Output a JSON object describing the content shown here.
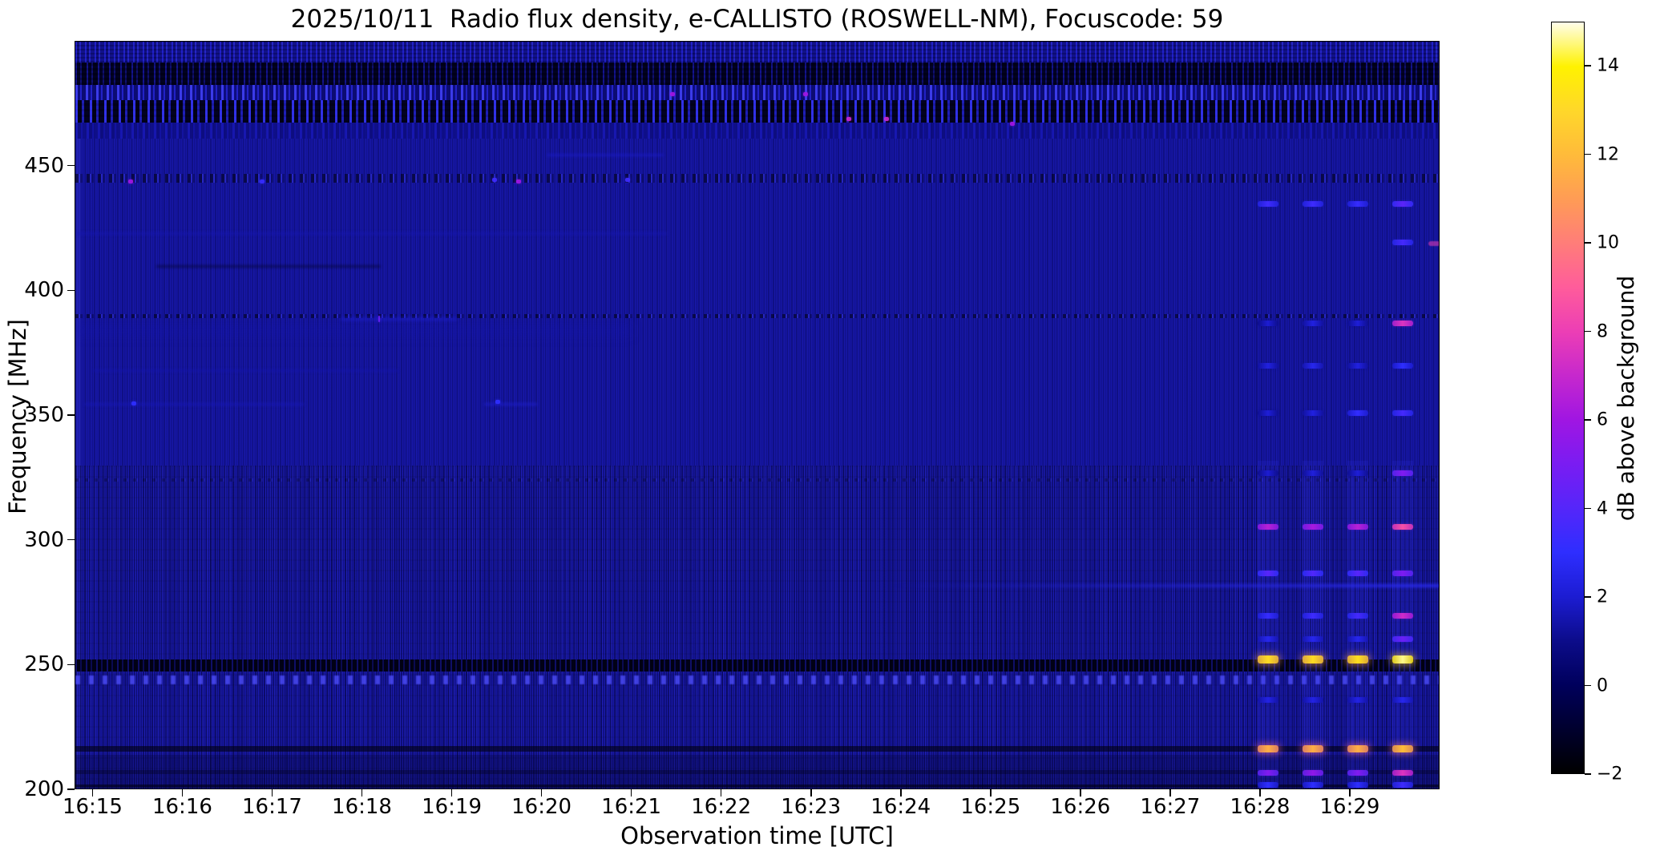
{
  "title": "2025/10/11  Radio flux density, e-CALLISTO (ROSWELL-NM), Focuscode: 59",
  "chart_data": {
    "type": "heatmap",
    "title": "2025/10/11  Radio flux density, e-CALLISTO (ROSWELL-NM), Focuscode: 59",
    "date": "2025/10/11",
    "station": "ROSWELL-NM",
    "instrument": "e-CALLISTO",
    "focuscode": "59",
    "xlabel": "Observation time [UTC]",
    "ylabel": "Frequency [MHz]",
    "colorbar_label": "dB above background",
    "x_ticks": [
      "16:15",
      "16:16",
      "16:17",
      "16:18",
      "16:19",
      "16:20",
      "16:21",
      "16:22",
      "16:23",
      "16:24",
      "16:25",
      "16:26",
      "16:27",
      "16:28",
      "16:29"
    ],
    "y_ticks": [
      450,
      400,
      350,
      300,
      250,
      200
    ],
    "x_range_utc": [
      "16:14:48",
      "16:30:00"
    ],
    "y_range_mhz": [
      200,
      500
    ],
    "grid": false,
    "legend": "colorbar-right",
    "color_scale": {
      "min": -2,
      "max": 15,
      "ticks": [
        14,
        12,
        10,
        8,
        6,
        4,
        2,
        0,
        -2
      ],
      "colormap": "gnuplot2-like (black-blue-violet-magenta-orange-yellow-white)",
      "stops": [
        [
          -2,
          "#000000"
        ],
        [
          0,
          "#00005c"
        ],
        [
          1,
          "#0c0c8a"
        ],
        [
          2,
          "#1c1cd2"
        ],
        [
          3,
          "#2e2eff"
        ],
        [
          4,
          "#5526fa"
        ],
        [
          5,
          "#7a1cf2"
        ],
        [
          6,
          "#a016e2"
        ],
        [
          7,
          "#c628cd"
        ],
        [
          8,
          "#ec3eb5"
        ],
        [
          9,
          "#ff5c9b"
        ],
        [
          10,
          "#ff7d79"
        ],
        [
          11,
          "#ff9c55"
        ],
        [
          12,
          "#ffbb3a"
        ],
        [
          13,
          "#ffd72a"
        ],
        [
          14,
          "#fff200"
        ],
        [
          15,
          "#fffdea"
        ]
      ]
    },
    "background_level_db": 0.9,
    "features": {
      "description": "Quiet blue background with fine vertical instrumental striping; noisy RFI band at 460-500 MHz; weak horizontal interference lines; four strong periodic broadband RFI bursts at ~30 s cadence near 16:28-16:30 with brightest emission at 252 MHz and 216 MHz.",
      "bands": [
        {
          "f1": 500,
          "f2": 491.5,
          "type": "noise-blue"
        },
        {
          "f1": 491.5,
          "f2": 482.5,
          "type": "speckle-dark"
        },
        {
          "f1": 482.5,
          "f2": 476.5,
          "type": "speckle-bright"
        },
        {
          "f1": 476.5,
          "f2": 467.5,
          "type": "noise-heavy"
        },
        {
          "f1": 467.5,
          "f2": 461,
          "type": "noise-fade"
        },
        {
          "f1": 447,
          "f2": 443.5,
          "type": "speckle-row"
        },
        {
          "f1": 390.8,
          "f2": 389.2,
          "type": "speckle-row"
        },
        {
          "f1": 325,
          "f2": 323.5,
          "type": "speckle-row-light"
        },
        {
          "f1": 330,
          "f2": 200,
          "type": "stripes-strong"
        },
        {
          "f1": 252.5,
          "f2": 247.5,
          "type": "dark-band"
        },
        {
          "f1": 246,
          "f2": 242.5,
          "type": "blob-row"
        },
        {
          "f1": 217.6,
          "f2": 215.4,
          "type": "dark-line"
        },
        {
          "f1": 214,
          "f2": 201,
          "type": "dim"
        },
        {
          "f1": 208,
          "f2": 206.5,
          "type": "dark-line-light"
        },
        {
          "f1": 202.3,
          "f2": 200.8,
          "type": "dark-line"
        }
      ],
      "streaks": [
        {
          "f": 454.5,
          "t1": "16:20:03",
          "t2": "16:21:21",
          "db": 2.0,
          "h": 3,
          "blur": 1.5
        },
        {
          "f": 423.0,
          "t1": "16:14:48",
          "t2": "16:21:24",
          "db": 1.6,
          "h": 3,
          "blur": 1.5
        },
        {
          "f": 410.0,
          "t1": "16:15:42",
          "t2": "16:18:12",
          "db": -0.6,
          "h": 3,
          "blur": 1.5,
          "dark": true
        },
        {
          "f": 389.0,
          "t1": "16:17:45",
          "t2": "16:19:03",
          "db": 2.2,
          "h": 4,
          "blur": 2
        },
        {
          "f": 384.0,
          "t1": "16:14:48",
          "t2": "16:21:00",
          "db": 1.5,
          "h": 14,
          "blur": 6
        },
        {
          "f": 368.0,
          "t1": "16:15:00",
          "t2": "16:18:24",
          "db": 1.5,
          "h": 3,
          "blur": 1.5
        },
        {
          "f": 354.5,
          "t1": "16:14:54",
          "t2": "16:17:21",
          "db": 1.7,
          "h": 3,
          "blur": 1.5
        },
        {
          "f": 354.5,
          "t1": "16:19:21",
          "t2": "16:19:57",
          "db": 2.2,
          "h": 3,
          "blur": 1.5
        },
        {
          "f": 282.0,
          "t1": "16:23:54",
          "t2": "16:30:00",
          "db": 3.0,
          "h": 4,
          "blur": 1.5,
          "grad": true
        },
        {
          "f": 419.0,
          "t1": "16:29:52",
          "t2": "16:30:00",
          "db": 8.0,
          "h": 6,
          "blur": 0.5
        }
      ],
      "dots": [
        {
          "t": "16:15:25",
          "f": 444.0,
          "db": 6.0
        },
        {
          "t": "16:16:53",
          "f": 444.0,
          "db": 3.2
        },
        {
          "t": "16:19:28",
          "f": 444.5,
          "db": 3.4
        },
        {
          "t": "16:19:44",
          "f": 444.0,
          "db": 6.0
        },
        {
          "t": "16:20:57",
          "f": 444.5,
          "db": 3.4
        },
        {
          "t": "16:21:27",
          "f": 479.0,
          "db": 6.0
        },
        {
          "t": "16:22:56",
          "f": 479.0,
          "db": 6.0
        },
        {
          "t": "16:23:25",
          "f": 469.0,
          "db": 7.0
        },
        {
          "t": "16:23:50",
          "f": 469.0,
          "db": 7.0
        },
        {
          "t": "16:25:14",
          "f": 467.0,
          "db": 6.0
        },
        {
          "t": "16:15:27",
          "f": 355.0,
          "db": 3.0
        },
        {
          "t": "16:19:30",
          "f": 355.5,
          "db": 3.0
        },
        {
          "t": "16:18:11",
          "f": 389.0,
          "db": 4.5,
          "w": 2,
          "h": 8
        }
      ],
      "rfi_bursts": {
        "times_utc": [
          "16:28:05",
          "16:28:35",
          "16:29:05",
          "16:29:35"
        ],
        "duration_s": 14,
        "column_glow": {
          "f1": 332,
          "f2": 201,
          "alpha": 0.14
        },
        "rows": [
          {
            "f": 435.0,
            "db": [
              3.4,
              3.4,
              3.2,
              4.2
            ]
          },
          {
            "f": 419.5,
            "db": [
              null,
              null,
              null,
              3.6
            ]
          },
          {
            "f": 387.0,
            "db": [
              2.0,
              2.3,
              2.1,
              7.6
            ]
          },
          {
            "f": 370.0,
            "db": [
              2.3,
              2.6,
              2.3,
              3.0
            ]
          },
          {
            "f": 351.0,
            "db": [
              2.1,
              2.3,
              3.1,
              3.6
            ]
          },
          {
            "f": 327.0,
            "db": [
              2.0,
              2.2,
              2.1,
              5.2
            ]
          },
          {
            "f": 305.5,
            "db": [
              6.6,
              6.2,
              6.6,
              8.6
            ]
          },
          {
            "f": 287.0,
            "db": [
              4.1,
              3.9,
              4.1,
              5.1
            ]
          },
          {
            "f": 270.0,
            "db": [
              3.2,
              3.4,
              3.6,
              7.2
            ]
          },
          {
            "f": 260.5,
            "db": [
              2.6,
              2.6,
              2.6,
              4.6
            ]
          },
          {
            "f": 252.5,
            "db": [
              13.2,
              13.2,
              13.3,
              14.6
            ],
            "h": 10,
            "glow": true
          },
          {
            "f": 236.0,
            "db": [
              2.4,
              2.4,
              2.4,
              2.6
            ]
          },
          {
            "f": 216.5,
            "db": [
              11.6,
              11.6,
              11.6,
              12.1
            ],
            "h": 9,
            "glow": true
          },
          {
            "f": 207.0,
            "db": [
              5.2,
              5.6,
              5.2,
              7.6
            ]
          },
          {
            "f": 202.0,
            "db": [
              3.0,
              3.0,
              3.0,
              3.4
            ]
          }
        ]
      }
    }
  }
}
